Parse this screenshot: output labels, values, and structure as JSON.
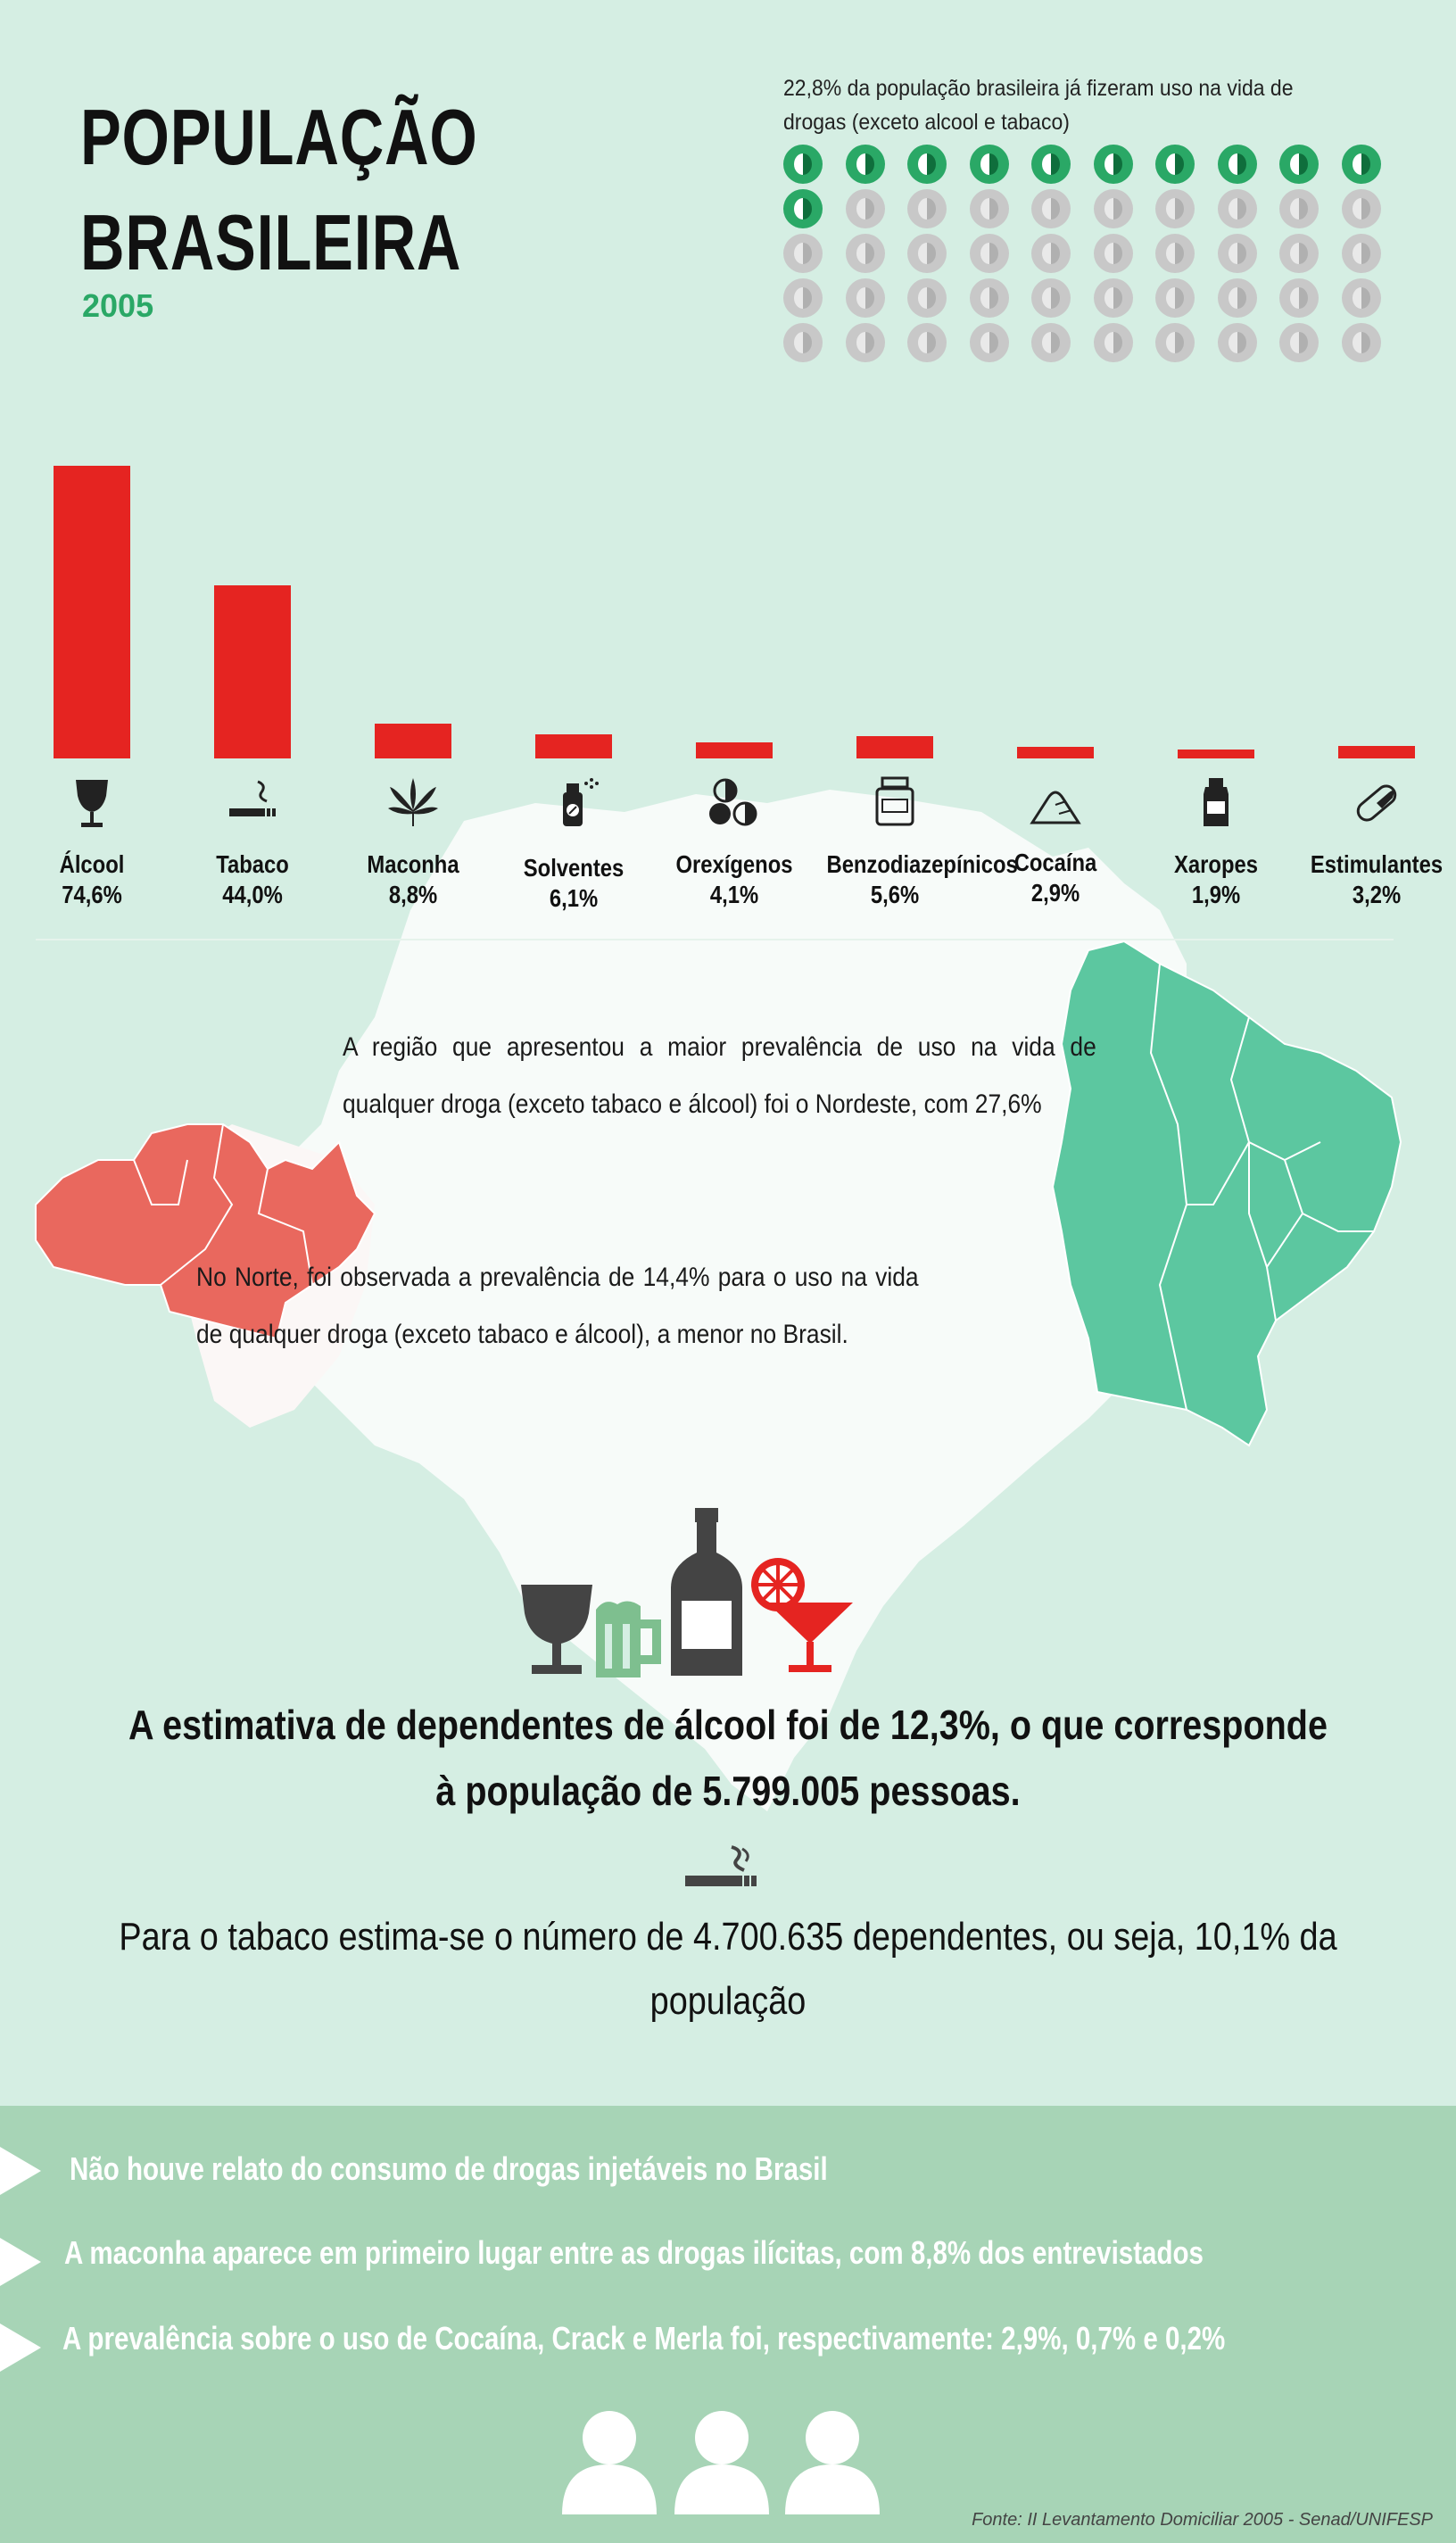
{
  "title": {
    "line1": "POPULAÇÃO",
    "line2": "BRASILEIRA",
    "year": "2005"
  },
  "dots_section": {
    "caption": "22,8% da população brasileira já fizeram uso na vida de drogas (exceto alcool e tabaco)",
    "total": 50,
    "filled": 11,
    "filled_color": "#2aa866",
    "empty_color": "#c8c8c8"
  },
  "chart_data": {
    "type": "bar",
    "categories": [
      "Álcool",
      "Tabaco",
      "Maconha",
      "Solventes",
      "Orexígenos",
      "Benzodiazepínicos",
      "Cocaína",
      "Xaropes",
      "Estimulantes"
    ],
    "values": [
      74.6,
      44.0,
      8.8,
      6.1,
      4.1,
      5.6,
      2.9,
      1.9,
      3.2
    ],
    "value_labels": [
      "74,6%",
      "44,0%",
      "8,8%",
      "6,1%",
      "4,1%",
      "5,6%",
      "2,9%",
      "1,9%",
      "3,2%"
    ],
    "icons": [
      "wine-glass-icon",
      "cigarette-icon",
      "cannabis-leaf-icon",
      "spray-can-icon",
      "pills-icon",
      "medicine-jar-icon",
      "powder-pile-icon",
      "syrup-bottle-icon",
      "capsule-icon"
    ],
    "bar_color": "#e52421",
    "ylim": [
      0,
      75
    ]
  },
  "regions": {
    "nordeste_text": "A região que apresentou a maior prevalência de uso na vida de qualquer droga (exceto tabaco e álcool) foi o Nordeste, com 27,6%",
    "norte_text": "No Norte, foi observada a prevalência de 14,4% para o uso na vida de qualquer droga (exceto tabaco e álcool), a menor no Brasil.",
    "nordeste_color": "#5cc7a0",
    "norte_color": "#e9685e"
  },
  "alcohol": {
    "text_line1": "A estimativa de dependentes de álcool foi de 12,3%, o que corresponde",
    "text_line2": "à população de 5.799.005 pessoas.",
    "icons": [
      "wine-glass-icon",
      "beer-mug-icon",
      "bottle-icon",
      "cocktail-icon"
    ]
  },
  "tobacco": {
    "text_line1": "Para o tabaco estima-se o número de 4.700.635 dependentes, ou seja, 10,1% da",
    "text_line2": "população"
  },
  "bullets": [
    "Não houve relato do consumo de drogas injetáveis no Brasil",
    "A maconha aparece em primeiro lugar entre as drogas ilícitas, com 8,8% dos entrevistados",
    "A prevalência sobre o uso de Cocaína, Crack e Merla foi, respectivamente: 2,9%, 0,7% e 0,2%"
  ],
  "source": "Fonte: II Levantamento Domiciliar 2005 - Senad/UNIFESP"
}
